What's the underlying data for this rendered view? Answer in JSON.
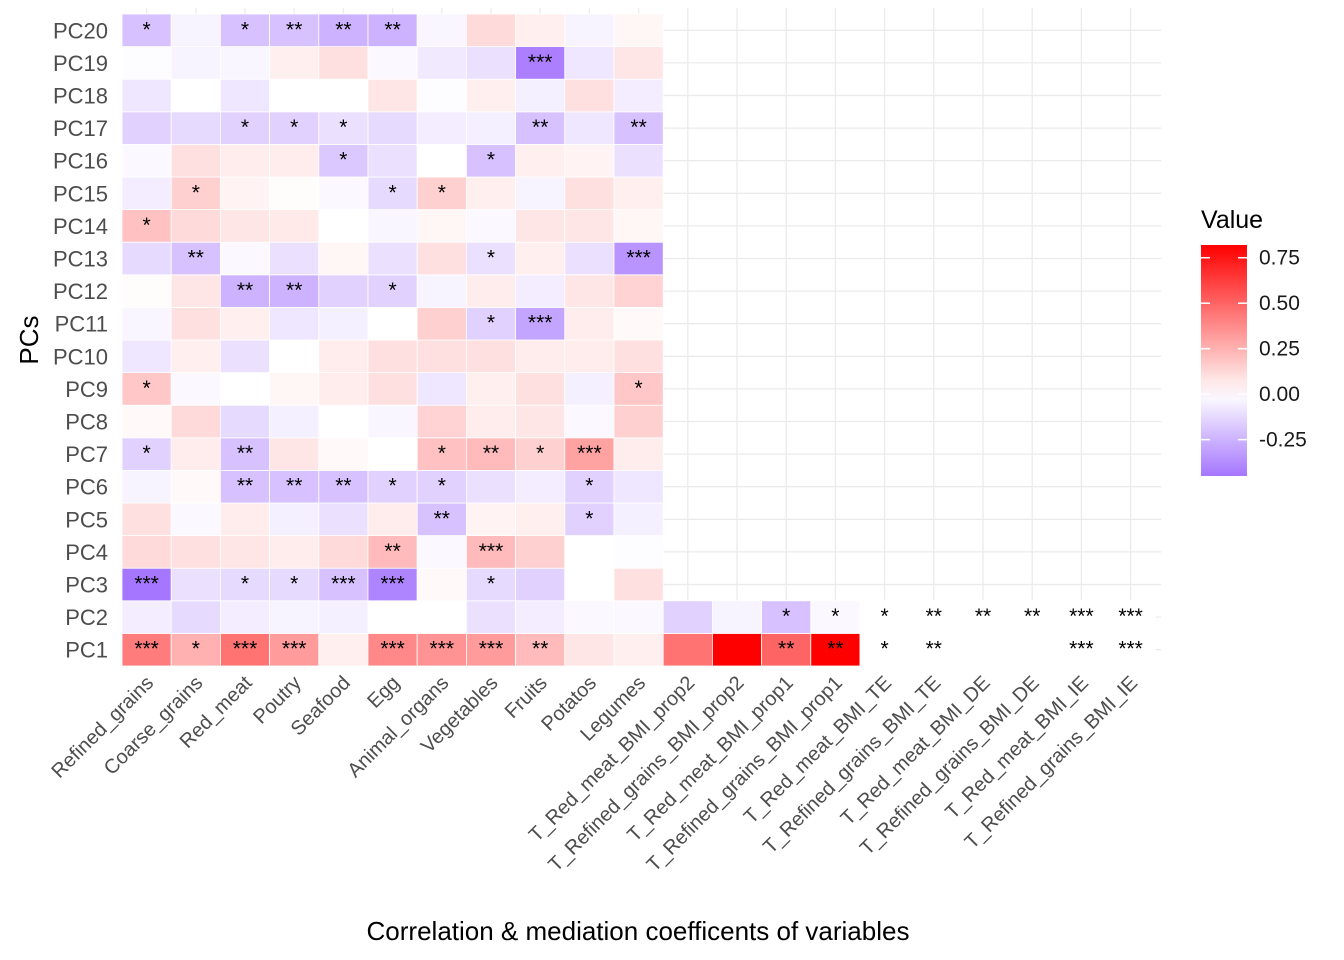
{
  "chart_data": {
    "type": "heatmap",
    "title": "",
    "xlabel": "Correlation & mediation coefficents of variables",
    "ylabel": "PCs",
    "x": [
      "Refined_grains",
      "Coarse_grains",
      "Red_meat",
      "Poutry",
      "Seafood",
      "Egg",
      "Animal_organs",
      "Vegetables",
      "Fruits",
      "Potatos",
      "Legumes",
      "T_Red_meat_BMI_prop2",
      "T_Refined_grains_BMI_prop2",
      "T_Red_meat_BMI_prop1",
      "T_Refined_grains_BMI_prop1",
      "T_Red_meat_BMI_TE",
      "T_Refined_grains_BMI_TE",
      "T_Red_meat_BMI_DE",
      "T_Refined_grains_BMI_DE",
      "T_Red_meat_BMI_IE",
      "T_Refined_grains_BMI_IE"
    ],
    "y": [
      "PC1",
      "PC2",
      "PC3",
      "PC4",
      "PC5",
      "PC6",
      "PC7",
      "PC8",
      "PC9",
      "PC10",
      "PC11",
      "PC12",
      "PC13",
      "PC14",
      "PC15",
      "PC16",
      "PC17",
      "PC18",
      "PC19",
      "PC20"
    ],
    "values": [
      [
        0.42,
        0.25,
        0.45,
        0.32,
        0.05,
        0.38,
        0.35,
        0.32,
        0.22,
        0.08,
        0.05,
        0.45,
        0.82,
        0.5,
        0.82,
        0.0,
        0.0,
        0.0,
        0.0,
        0.0,
        0.0
      ],
      [
        -0.06,
        -0.12,
        -0.06,
        -0.04,
        -0.05,
        0.0,
        0.0,
        -0.1,
        -0.06,
        -0.02,
        -0.02,
        -0.15,
        -0.04,
        -0.2,
        -0.02,
        0.0,
        0.0,
        0.0,
        0.0,
        0.0,
        0.0
      ],
      [
        -0.45,
        -0.1,
        -0.12,
        -0.12,
        -0.2,
        -0.4,
        0.02,
        -0.12,
        -0.15,
        0.0,
        0.1,
        null,
        null,
        null,
        null,
        null,
        null,
        null,
        null,
        null,
        null
      ],
      [
        0.12,
        0.1,
        0.08,
        0.06,
        0.12,
        0.22,
        -0.02,
        0.22,
        0.15,
        0.0,
        -0.01,
        null,
        null,
        null,
        null,
        null,
        null,
        null,
        null,
        null,
        null
      ],
      [
        0.1,
        -0.02,
        0.06,
        -0.05,
        -0.1,
        0.06,
        -0.2,
        0.04,
        0.05,
        -0.15,
        -0.05,
        null,
        null,
        null,
        null,
        null,
        null,
        null,
        null,
        null,
        null
      ],
      [
        -0.04,
        0.02,
        -0.2,
        -0.2,
        -0.2,
        -0.15,
        -0.15,
        -0.1,
        -0.06,
        -0.15,
        -0.08,
        null,
        null,
        null,
        null,
        null,
        null,
        null,
        null,
        null,
        null
      ],
      [
        -0.15,
        0.06,
        -0.2,
        0.08,
        0.02,
        0.0,
        0.2,
        0.22,
        0.15,
        0.3,
        0.06,
        null,
        null,
        null,
        null,
        null,
        null,
        null,
        null,
        null,
        null
      ],
      [
        0.02,
        0.12,
        -0.12,
        -0.05,
        0.0,
        -0.03,
        0.14,
        0.06,
        0.08,
        -0.02,
        0.15,
        null,
        null,
        null,
        null,
        null,
        null,
        null,
        null,
        null,
        null
      ],
      [
        0.18,
        -0.02,
        0.0,
        0.03,
        0.06,
        0.1,
        -0.08,
        0.05,
        0.1,
        -0.05,
        0.18,
        null,
        null,
        null,
        null,
        null,
        null,
        null,
        null,
        null,
        null
      ],
      [
        -0.08,
        0.05,
        -0.1,
        0.0,
        0.06,
        0.1,
        0.1,
        0.1,
        0.06,
        0.06,
        0.1,
        null,
        null,
        null,
        null,
        null,
        null,
        null,
        null,
        null,
        null
      ],
      [
        -0.03,
        0.1,
        0.05,
        -0.08,
        -0.05,
        0.0,
        0.15,
        -0.15,
        -0.3,
        0.06,
        0.02,
        null,
        null,
        null,
        null,
        null,
        null,
        null,
        null,
        null,
        null
      ],
      [
        0.01,
        0.08,
        -0.25,
        -0.25,
        -0.15,
        -0.15,
        -0.04,
        0.06,
        -0.06,
        0.08,
        0.14,
        null,
        null,
        null,
        null,
        null,
        null,
        null,
        null,
        null,
        null
      ],
      [
        -0.12,
        -0.2,
        -0.02,
        -0.1,
        0.03,
        -0.1,
        0.1,
        -0.1,
        0.05,
        -0.1,
        -0.35,
        null,
        null,
        null,
        null,
        null,
        null,
        null,
        null,
        null,
        null
      ],
      [
        0.2,
        0.12,
        0.08,
        0.07,
        0.0,
        -0.03,
        0.03,
        -0.02,
        0.08,
        0.08,
        0.03,
        null,
        null,
        null,
        null,
        null,
        null,
        null,
        null,
        null,
        null
      ],
      [
        -0.06,
        0.15,
        0.04,
        0.01,
        -0.02,
        -0.12,
        0.15,
        0.05,
        -0.04,
        0.1,
        0.05,
        null,
        null,
        null,
        null,
        null,
        null,
        null,
        null,
        null,
        null
      ],
      [
        -0.02,
        0.1,
        0.06,
        0.06,
        -0.18,
        -0.1,
        0.0,
        -0.2,
        0.05,
        0.04,
        -0.1,
        null,
        null,
        null,
        null,
        null,
        null,
        null,
        null,
        null,
        null
      ],
      [
        -0.15,
        -0.12,
        -0.15,
        -0.15,
        -0.1,
        -0.12,
        -0.06,
        -0.05,
        -0.2,
        -0.08,
        -0.2,
        null,
        null,
        null,
        null,
        null,
        null,
        null,
        null,
        null,
        null
      ],
      [
        -0.08,
        0.0,
        -0.08,
        0.0,
        0.0,
        0.08,
        -0.01,
        0.05,
        -0.05,
        0.1,
        -0.06,
        null,
        null,
        null,
        null,
        null,
        null,
        null,
        null,
        null,
        null
      ],
      [
        -0.01,
        -0.04,
        -0.03,
        0.05,
        0.1,
        -0.02,
        -0.07,
        -0.1,
        -0.42,
        -0.08,
        0.08,
        null,
        null,
        null,
        null,
        null,
        null,
        null,
        null,
        null,
        null
      ],
      [
        -0.2,
        -0.04,
        -0.2,
        -0.2,
        -0.25,
        -0.25,
        -0.03,
        0.12,
        0.05,
        -0.04,
        0.03,
        null,
        null,
        null,
        null,
        null,
        null,
        null,
        null,
        null,
        null
      ]
    ],
    "significance": [
      [
        "***",
        "*",
        "***",
        "***",
        "",
        "***",
        "***",
        "***",
        "**",
        "",
        "",
        "",
        "",
        "**",
        "**",
        "*",
        "**",
        "",
        "",
        "***",
        "***"
      ],
      [
        "",
        "",
        "",
        "",
        "",
        "",
        "",
        "",
        "",
        "",
        "",
        "",
        "",
        "*",
        "*",
        "*",
        "**",
        "**",
        "**",
        "***",
        "***"
      ],
      [
        "***",
        "",
        "*",
        "*",
        "***",
        "***",
        "",
        "*",
        "",
        "",
        "",
        "",
        "",
        "",
        "",
        "",
        "",
        "",
        "",
        "",
        ""
      ],
      [
        "",
        "",
        "",
        "",
        "",
        "**",
        "",
        "***",
        "",
        "",
        "",
        "",
        "",
        "",
        "",
        "",
        "",
        "",
        "",
        "",
        ""
      ],
      [
        "",
        "",
        "",
        "",
        "",
        "",
        "**",
        "",
        "",
        "*",
        "",
        "",
        "",
        "",
        "",
        "",
        "",
        "",
        "",
        "",
        ""
      ],
      [
        "",
        "",
        "**",
        "**",
        "**",
        "*",
        "*",
        "",
        "",
        "*",
        "",
        "",
        "",
        "",
        "",
        "",
        "",
        "",
        "",
        "",
        ""
      ],
      [
        "*",
        "",
        "**",
        "",
        "",
        "",
        "*",
        "**",
        "*",
        "***",
        "",
        "",
        "",
        "",
        "",
        "",
        "",
        "",
        "",
        "",
        ""
      ],
      [
        "",
        "",
        "",
        "",
        "",
        "",
        "",
        "",
        "",
        "",
        "",
        "",
        "",
        "",
        "",
        "",
        "",
        "",
        "",
        "",
        ""
      ],
      [
        "*",
        "",
        "",
        "",
        "",
        "",
        "",
        "",
        "",
        "",
        "*",
        "",
        "",
        "",
        "",
        "",
        "",
        "",
        "",
        "",
        ""
      ],
      [
        "",
        "",
        "",
        "",
        "",
        "",
        "",
        "",
        "",
        "",
        "",
        "",
        "",
        "",
        "",
        "",
        "",
        "",
        "",
        "",
        ""
      ],
      [
        "",
        "",
        "",
        "",
        "",
        "",
        "",
        "*",
        "***",
        "",
        "",
        "",
        "",
        "",
        "",
        "",
        "",
        "",
        "",
        "",
        ""
      ],
      [
        "",
        "",
        "**",
        "**",
        "",
        "*",
        "",
        "",
        "",
        "",
        "",
        "",
        "",
        "",
        "",
        "",
        "",
        "",
        "",
        "",
        ""
      ],
      [
        "",
        "**",
        "",
        "",
        "",
        "",
        "",
        "*",
        "",
        "",
        "***",
        "",
        "",
        "",
        "",
        "",
        "",
        "",
        "",
        "",
        ""
      ],
      [
        "*",
        "",
        "",
        "",
        "",
        "",
        "",
        "",
        "",
        "",
        "",
        "",
        "",
        "",
        "",
        "",
        "",
        "",
        "",
        "",
        ""
      ],
      [
        "",
        "*",
        "",
        "",
        "",
        "*",
        "*",
        "",
        "",
        "",
        "",
        "",
        "",
        "",
        "",
        "",
        "",
        "",
        "",
        "",
        ""
      ],
      [
        "",
        "",
        "",
        "",
        "*",
        "",
        "",
        "*",
        "",
        "",
        "",
        "",
        "",
        "",
        "",
        "",
        "",
        "",
        "",
        "",
        ""
      ],
      [
        "",
        "",
        "*",
        "*",
        "*",
        "",
        "",
        "",
        "**",
        "",
        "**",
        "",
        "",
        "",
        "",
        "",
        "",
        "",
        "",
        "",
        ""
      ],
      [
        "",
        "",
        "",
        "",
        "",
        "",
        "",
        "",
        "",
        "",
        "",
        "",
        "",
        "",
        "",
        "",
        "",
        "",
        "",
        "",
        ""
      ],
      [
        "",
        "",
        "",
        "",
        "",
        "",
        "",
        "",
        "***",
        "",
        "",
        "",
        "",
        "",
        "",
        "",
        "",
        "",
        "",
        "",
        ""
      ],
      [
        "*",
        "",
        "*",
        "**",
        "**",
        "**",
        "",
        "",
        "",
        "",
        "",
        "",
        "",
        "",
        "",
        "",
        "",
        "",
        "",
        "",
        ""
      ]
    ],
    "color_scale": {
      "low": "#a576ff",
      "mid": "#ffffff",
      "high": "#ff0000",
      "range": [
        -0.45,
        0.82
      ]
    },
    "legend": {
      "title": "Value",
      "ticks": [
        0.75,
        0.5,
        0.25,
        0.0,
        -0.25
      ],
      "tick_labels": [
        "0.75",
        "0.50",
        "0.25",
        "0.00",
        "-0.25"
      ],
      "position": "right"
    },
    "grid": true
  }
}
